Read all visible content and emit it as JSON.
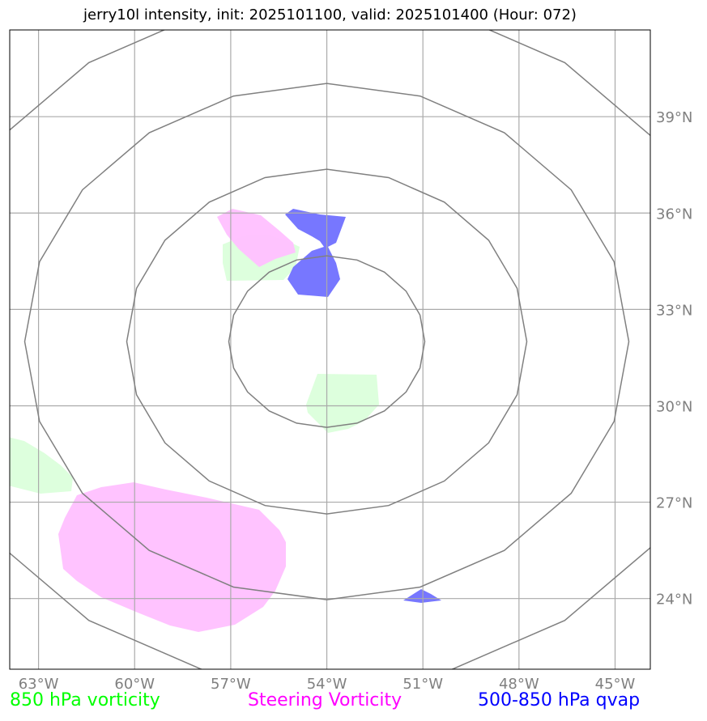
{
  "title": "jerry10l intensity, init: 2025101100, valid: 2025101400 (Hour: 072)",
  "map": {
    "lon_labels": [
      "63°W",
      "60°W",
      "57°W",
      "54°W",
      "51°W",
      "48°W",
      "45°W"
    ],
    "lon_values": [
      -63,
      -60,
      -57,
      -54,
      -51,
      -48,
      -45
    ],
    "lat_labels": [
      "39°N",
      "36°N",
      "33°N",
      "30°N",
      "27°N",
      "24°N"
    ],
    "lat_values": [
      39,
      36,
      33,
      30,
      27,
      24
    ],
    "extent": {
      "lon_min": -63.9,
      "lon_max": -43.9,
      "lat_min": 21.8,
      "lat_max": 41.7
    },
    "storm_center": {
      "lon": -54.0,
      "lat": 32.0
    },
    "range_rings": 4,
    "gridline_color": "#aaaaaa",
    "ring_color": "#808080",
    "tick_label_color": "#808080"
  },
  "legend": [
    {
      "label": "850 hPa vorticity",
      "color": "#00ff00"
    },
    {
      "label": "Steering Vorticity",
      "color": "#ff00ff"
    },
    {
      "label": "500-850 hPa qvap",
      "color": "#0000ff"
    }
  ],
  "fields": {
    "vorticity_850_color": "#ddffdd",
    "steering_vorticity_color": "#ffc0ff",
    "qvap_color": "#7777ff"
  }
}
